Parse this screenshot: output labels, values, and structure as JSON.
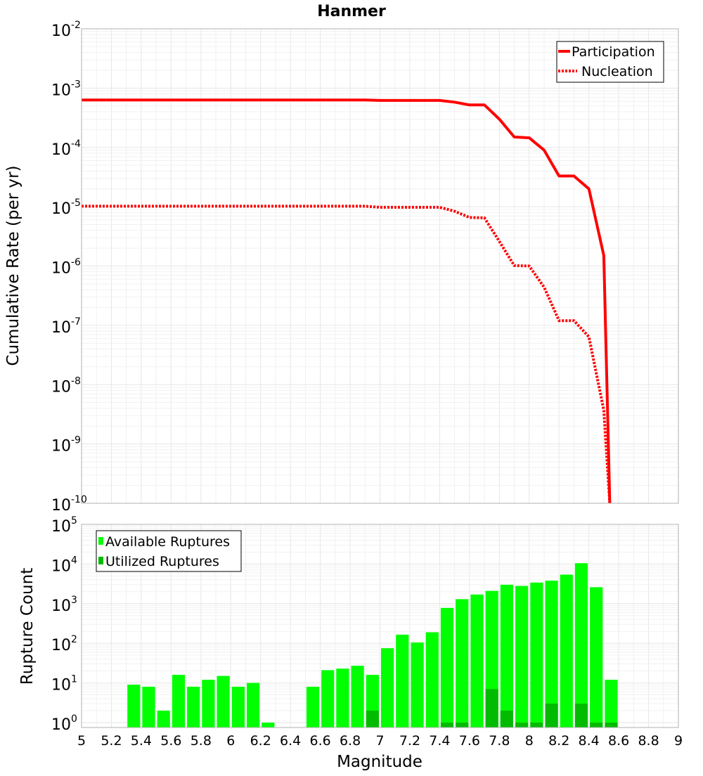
{
  "chart_data": [
    {
      "type": "line",
      "title": "Hanmer",
      "xlabel": "",
      "ylabel": "Cumulative Rate (per yr)",
      "yscale": "log",
      "xlim": [
        5,
        9
      ],
      "ylim": [
        1e-10,
        0.01
      ],
      "ytick_base": "10",
      "yticks": [
        {
          "exp": "-10",
          "value": 1e-10
        },
        {
          "exp": "-9",
          "value": 1e-09
        },
        {
          "exp": "-8",
          "value": 1e-08
        },
        {
          "exp": "-7",
          "value": 1e-07
        },
        {
          "exp": "-6",
          "value": 1e-06
        },
        {
          "exp": "-5",
          "value": 1e-05
        },
        {
          "exp": "-4",
          "value": 0.0001
        },
        {
          "exp": "-3",
          "value": 0.001
        },
        {
          "exp": "-2",
          "value": 0.01
        }
      ],
      "legend_position": "top-right",
      "series": [
        {
          "name": "Participation",
          "color": "#ff0000",
          "style": "solid",
          "x": [
            5.0,
            6.9,
            7.0,
            7.4,
            7.5,
            7.6,
            7.7,
            7.8,
            7.9,
            8.0,
            8.1,
            8.2,
            8.3,
            8.4,
            8.5,
            8.54
          ],
          "y": [
            0.00063,
            0.00063,
            0.00062,
            0.00062,
            0.00058,
            0.00052,
            0.00052,
            0.0003,
            0.00015,
            0.000145,
            9e-05,
            3.3e-05,
            3.3e-05,
            2e-05,
            1.5e-06,
            1e-10
          ]
        },
        {
          "name": "Nucleation",
          "color": "#ff0000",
          "style": "dotted",
          "x": [
            5.0,
            6.9,
            7.0,
            7.4,
            7.5,
            7.6,
            7.7,
            7.8,
            7.9,
            8.0,
            8.1,
            8.2,
            8.3,
            8.4,
            8.5,
            8.54
          ],
          "y": [
            1.02e-05,
            1.02e-05,
            9.8e-06,
            9.8e-06,
            8.4e-06,
            6.6e-06,
            6.5e-06,
            2.6e-06,
            1.02e-06,
            1e-06,
            4.4e-07,
            1.2e-07,
            1.2e-07,
            6.4e-08,
            3.7e-09,
            1e-10
          ]
        }
      ]
    },
    {
      "type": "bar",
      "title": "",
      "xlabel": "Magnitude",
      "ylabel": "Rupture Count",
      "yscale": "log",
      "xlim": [
        5,
        9
      ],
      "ylim": [
        0.75,
        100000.0
      ],
      "ytick_base": "10",
      "yticks": [
        {
          "exp": "0",
          "value": 1
        },
        {
          "exp": "1",
          "value": 10
        },
        {
          "exp": "2",
          "value": 100
        },
        {
          "exp": "3",
          "value": 1000
        },
        {
          "exp": "4",
          "value": 10000
        },
        {
          "exp": "5",
          "value": 100000
        }
      ],
      "xticks": [
        "5",
        "5.2",
        "5.4",
        "5.6",
        "5.8",
        "6",
        "6.2",
        "6.4",
        "6.6",
        "6.8",
        "7",
        "7.2",
        "7.4",
        "7.6",
        "7.8",
        "8",
        "8.2",
        "8.4",
        "8.6",
        "8.8",
        "9"
      ],
      "bin_width": 0.1,
      "legend_position": "top-left",
      "series": [
        {
          "name": "Available Ruptures",
          "color": "#00ff00",
          "x": [
            5.35,
            5.45,
            5.55,
            5.65,
            5.75,
            5.85,
            5.95,
            6.05,
            6.15,
            6.25,
            6.55,
            6.65,
            6.75,
            6.85,
            6.95,
            7.05,
            7.15,
            7.25,
            7.35,
            7.45,
            7.55,
            7.65,
            7.75,
            7.85,
            7.95,
            8.05,
            8.15,
            8.25,
            8.35,
            8.45,
            8.55
          ],
          "values": [
            9,
            8,
            2,
            16,
            8,
            12,
            15,
            8,
            10,
            1,
            8,
            21,
            23,
            27,
            16,
            75,
            165,
            105,
            190,
            780,
            1300,
            1700,
            2100,
            3000,
            2800,
            3400,
            3800,
            5400,
            10500,
            2600,
            12
          ]
        },
        {
          "name": "Utilized Ruptures",
          "color": "#00bb00",
          "x": [
            6.95,
            7.45,
            7.55,
            7.75,
            7.85,
            7.95,
            8.05,
            8.15,
            8.35,
            8.45,
            8.55
          ],
          "values": [
            2,
            1,
            1,
            7,
            2,
            1,
            1,
            3,
            3,
            1,
            1
          ]
        }
      ]
    }
  ]
}
